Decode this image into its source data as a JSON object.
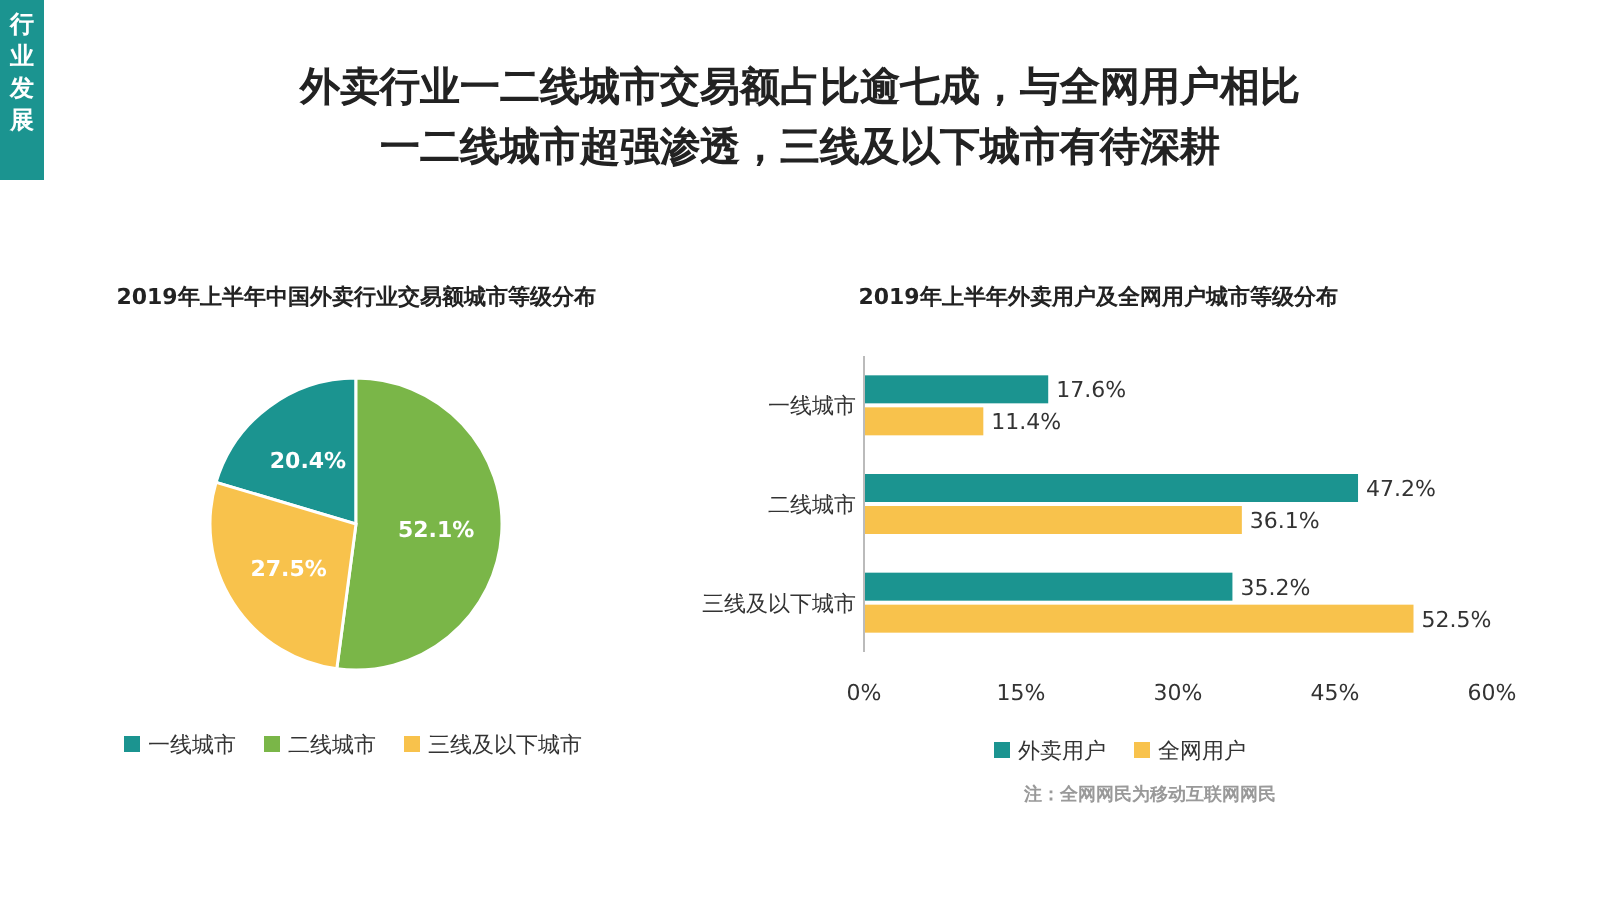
{
  "chart_data": [
    {
      "type": "other",
      "title": "外卖行业一二线城市交易额占比逾七成，与全网用户相比",
      "subtitle": "一二线城市超强渗透，三线及以下城市有待深耕",
      "annotations": [
        "行业发展"
      ]
    },
    {
      "type": "pie",
      "title": "2019年上半年中国外卖行业交易额城市等级分布",
      "categories": [
        "一线城市",
        "二线城市",
        "三线及以下城市"
      ],
      "values": [
        20.4,
        52.1,
        27.5
      ],
      "colors": [
        "#1b9490",
        "#7ab648",
        "#f8c24c"
      ],
      "value_labels": [
        "20.4%",
        "52.1%",
        "27.5%"
      ],
      "legend": "bottom"
    },
    {
      "type": "bar",
      "orientation": "horizontal",
      "title": "2019年上半年外卖用户及全网用户城市等级分布",
      "categories": [
        "一线城市",
        "二线城市",
        "三线及以下城市"
      ],
      "series": [
        {
          "name": "外卖用户",
          "color": "#1b9490",
          "values": [
            17.6,
            47.2,
            35.2
          ],
          "value_labels": [
            "17.6%",
            "47.2%",
            "35.2%"
          ]
        },
        {
          "name": "全网用户",
          "color": "#f8c24c",
          "values": [
            11.4,
            36.1,
            52.5
          ],
          "value_labels": [
            "11.4%",
            "36.1%",
            "52.5%"
          ]
        }
      ],
      "xlim": [
        0,
        60
      ],
      "xticks": [
        {
          "value": 0,
          "label": "0%"
        },
        {
          "value": 15,
          "label": "15%"
        },
        {
          "value": 30,
          "label": "30%"
        },
        {
          "value": 45,
          "label": "45%"
        },
        {
          "value": 60,
          "label": "60%"
        }
      ],
      "legend": "bottom",
      "annotations": [
        "注：全网网民为移动互联网网民"
      ]
    }
  ]
}
